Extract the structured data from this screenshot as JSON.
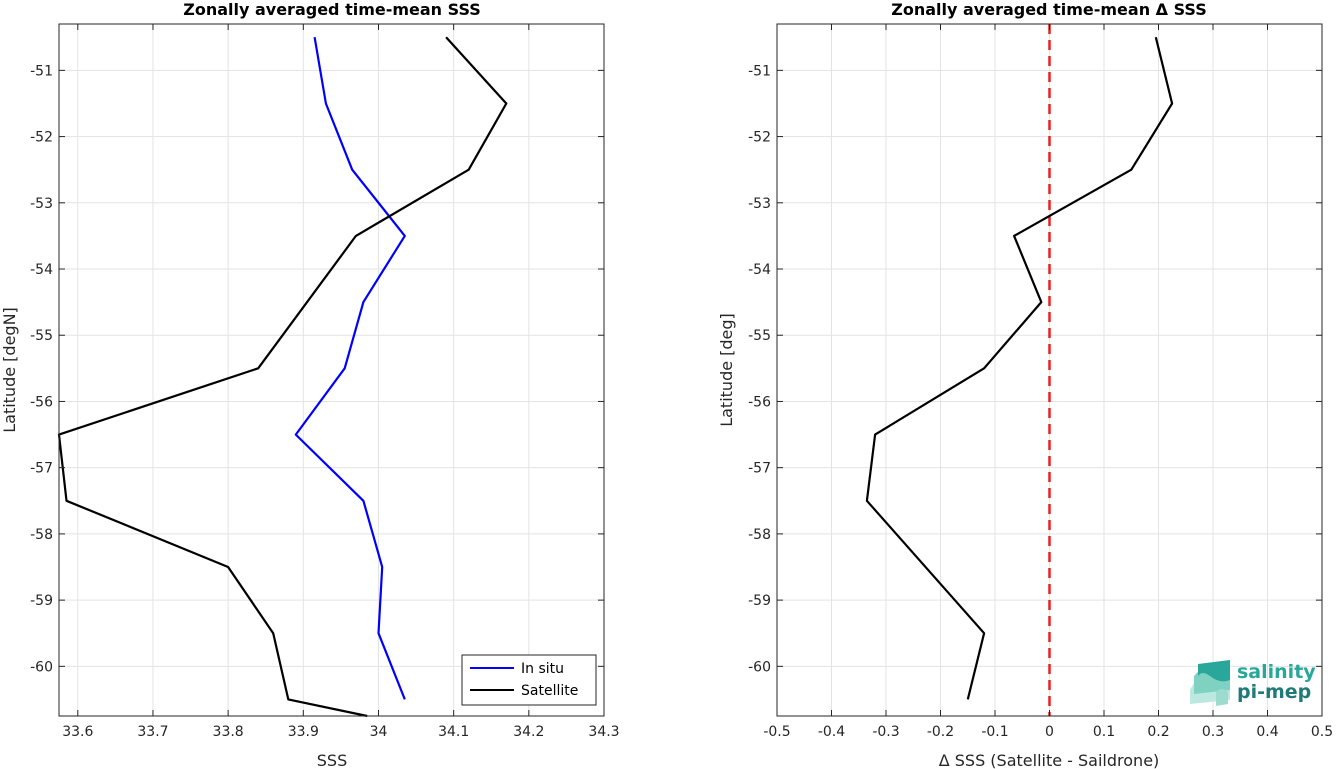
{
  "chart_data": [
    {
      "type": "line",
      "title": "Zonally averaged time-mean SSS",
      "xlabel": "SSS",
      "ylabel": "Latitude [degN]",
      "xlim": [
        33.575,
        34.3
      ],
      "ylim": [
        -60.75,
        -50.3
      ],
      "xticks": [
        33.6,
        33.7,
        33.8,
        33.9,
        34,
        34.1,
        34.2,
        34.3
      ],
      "xtick_labels": [
        "33.6",
        "33.7",
        "33.8",
        "33.9",
        "34",
        "34.1",
        "34.2",
        "34.3"
      ],
      "yticks": [
        -51,
        -52,
        -53,
        -54,
        -55,
        -56,
        -57,
        -58,
        -59,
        -60
      ],
      "ytick_labels": [
        "-51",
        "-52",
        "-53",
        "-54",
        "-55",
        "-56",
        "-57",
        "-58",
        "-59",
        "-60"
      ],
      "grid": true,
      "legend_position": "bottom-right",
      "series": [
        {
          "name": "In situ",
          "color": "#0000ff",
          "x": [
            33.915,
            33.93,
            33.965,
            34.035,
            33.98,
            33.955,
            33.89,
            33.98,
            34.005,
            34.0,
            34.035
          ],
          "y": [
            -50.5,
            -51.5,
            -52.5,
            -53.5,
            -54.5,
            -55.5,
            -56.5,
            -57.5,
            -58.5,
            -59.5,
            -60.5
          ]
        },
        {
          "name": "Satellite",
          "color": "#000000",
          "x": [
            34.09,
            34.17,
            34.12,
            33.97,
            33.84,
            33.575,
            33.585,
            33.8,
            33.86,
            33.88,
            33.985
          ],
          "y": [
            -50.5,
            -51.5,
            -52.5,
            -53.5,
            -55.5,
            -56.5,
            -57.5,
            -58.5,
            -59.5,
            -60.5,
            -60.75
          ]
        }
      ]
    },
    {
      "type": "line",
      "title": "Zonally averaged time-mean Δ SSS",
      "xlabel": "Δ SSS (Satellite - Saildrone)",
      "ylabel": "Latitude [deg]",
      "xlim": [
        -0.5,
        0.5
      ],
      "ylim": [
        -60.75,
        -50.3
      ],
      "xticks": [
        -0.5,
        -0.4,
        -0.3,
        -0.2,
        -0.1,
        0,
        0.1,
        0.2,
        0.3,
        0.4,
        0.5
      ],
      "xtick_labels": [
        "-0.5",
        "-0.4",
        "-0.3",
        "-0.2",
        "-0.1",
        "0",
        "0.1",
        "0.2",
        "0.3",
        "0.4",
        "0.5"
      ],
      "yticks": [
        -51,
        -52,
        -53,
        -54,
        -55,
        -56,
        -57,
        -58,
        -59,
        -60
      ],
      "ytick_labels": [
        "-51",
        "-52",
        "-53",
        "-54",
        "-55",
        "-56",
        "-57",
        "-58",
        "-59",
        "-60"
      ],
      "grid": true,
      "reference_line": {
        "x": 0,
        "color": "#e8201f",
        "style": "dashed"
      },
      "series": [
        {
          "color": "#000000",
          "x": [
            0.195,
            0.225,
            0.15,
            -0.065,
            -0.015,
            -0.12,
            -0.32,
            -0.335,
            -0.12,
            -0.15
          ],
          "y": [
            -50.5,
            -51.5,
            -52.5,
            -53.5,
            -54.5,
            -55.5,
            -56.5,
            -57.5,
            -59.5,
            -60.5
          ]
        }
      ]
    }
  ],
  "logo": {
    "line1": "salinity",
    "line2": "pi-mep",
    "colors": [
      "#2aa79b",
      "#1f7a78"
    ]
  }
}
